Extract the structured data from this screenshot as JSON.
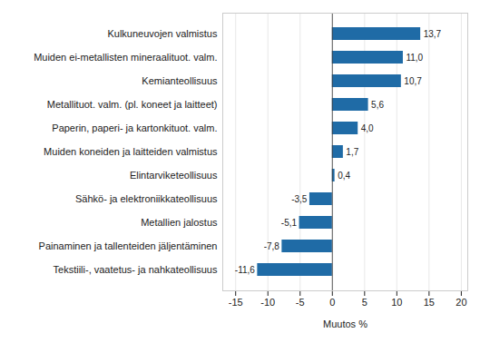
{
  "chart_data": {
    "type": "bar",
    "orientation": "horizontal",
    "categories": [
      "Kulkuneuvojen valmistus",
      "Muiden ei-metallisten mineraalituot. valm.",
      "Kemianteollisuus",
      "Metallituot. valm. (pl. koneet ja laitteet)",
      "Paperin, paperi- ja kartonkituot. valm.",
      "Muiden koneiden ja laitteiden valmistus",
      "Elintarviketeollisuus",
      "Sähkö- ja elektroniikkateollisuus",
      "Metallien jalostus",
      "Painaminen ja tallenteiden jäljentäminen",
      "Tekstiili-, vaatetus- ja nahkateollisuus"
    ],
    "values": [
      13.7,
      11.0,
      10.7,
      5.6,
      4.0,
      1.7,
      0.4,
      -3.5,
      -5.1,
      -7.8,
      -11.6
    ],
    "value_labels": [
      "13,7",
      "11,0",
      "10,7",
      "5,6",
      "4,0",
      "1,7",
      "0,4",
      "-3,5",
      "-5,1",
      "-7,8",
      "-11,6"
    ],
    "data_labels": true,
    "color": "#1f6ba6",
    "x_label": "Muutos %",
    "xlim": [
      -17,
      21
    ],
    "xticks": [
      -15,
      -10,
      -5,
      0,
      5,
      10,
      15,
      20
    ],
    "grid": true
  }
}
